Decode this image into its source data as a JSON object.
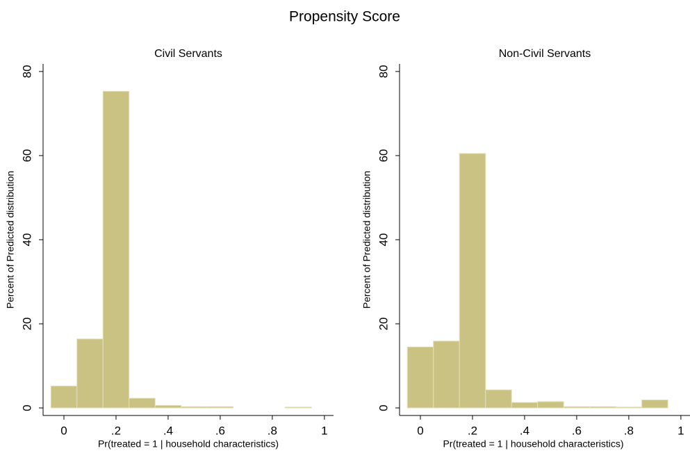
{
  "title": "Propensity Score",
  "chart_data": [
    {
      "type": "histogram",
      "title": "Civil Servants",
      "xlabel": "Pr(treated = 1 | household characteristics)",
      "ylabel": "Percent of Predicted distribution",
      "bins": [
        -0.05,
        0.05,
        0.15,
        0.25,
        0.35,
        0.45,
        0.55,
        0.65,
        0.75,
        0.85,
        0.95
      ],
      "values": [
        5.2,
        16.4,
        75.3,
        2.3,
        0.6,
        0.3,
        0.3,
        0,
        0,
        0.2
      ],
      "color": "#c9c283",
      "xlim": [
        -0.08,
        1.035
      ],
      "ylim": [
        -1.8,
        81.8
      ],
      "xticks": [
        0,
        {
          "value": 0.2,
          "label": ".2"
        },
        {
          "value": 0.4,
          "label": ".4"
        },
        {
          "value": 0.6,
          "label": ".6"
        },
        {
          "value": 0.8,
          "label": ".8"
        },
        1
      ],
      "yticks": [
        0,
        20,
        40,
        60,
        80
      ]
    },
    {
      "type": "histogram",
      "title": "Non-Civil Servants",
      "xlabel": "Pr(treated = 1 | household characteristics)",
      "ylabel": "Percent of Predicted distribution",
      "bins": [
        -0.05,
        0.05,
        0.15,
        0.25,
        0.35,
        0.45,
        0.55,
        0.65,
        0.75,
        0.85,
        0.95
      ],
      "values": [
        14.5,
        15.9,
        60.5,
        4.3,
        1.3,
        1.5,
        0.3,
        0.3,
        0.2,
        1.9
      ],
      "color": "#c9c283",
      "xlim": [
        -0.08,
        1.035
      ],
      "ylim": [
        -1.8,
        81.8
      ],
      "xticks": [
        0,
        {
          "value": 0.2,
          "label": ".2"
        },
        {
          "value": 0.4,
          "label": ".4"
        },
        {
          "value": 0.6,
          "label": ".6"
        },
        {
          "value": 0.8,
          "label": ".8"
        },
        1
      ],
      "yticks": [
        0,
        20,
        40,
        60,
        80
      ]
    }
  ]
}
